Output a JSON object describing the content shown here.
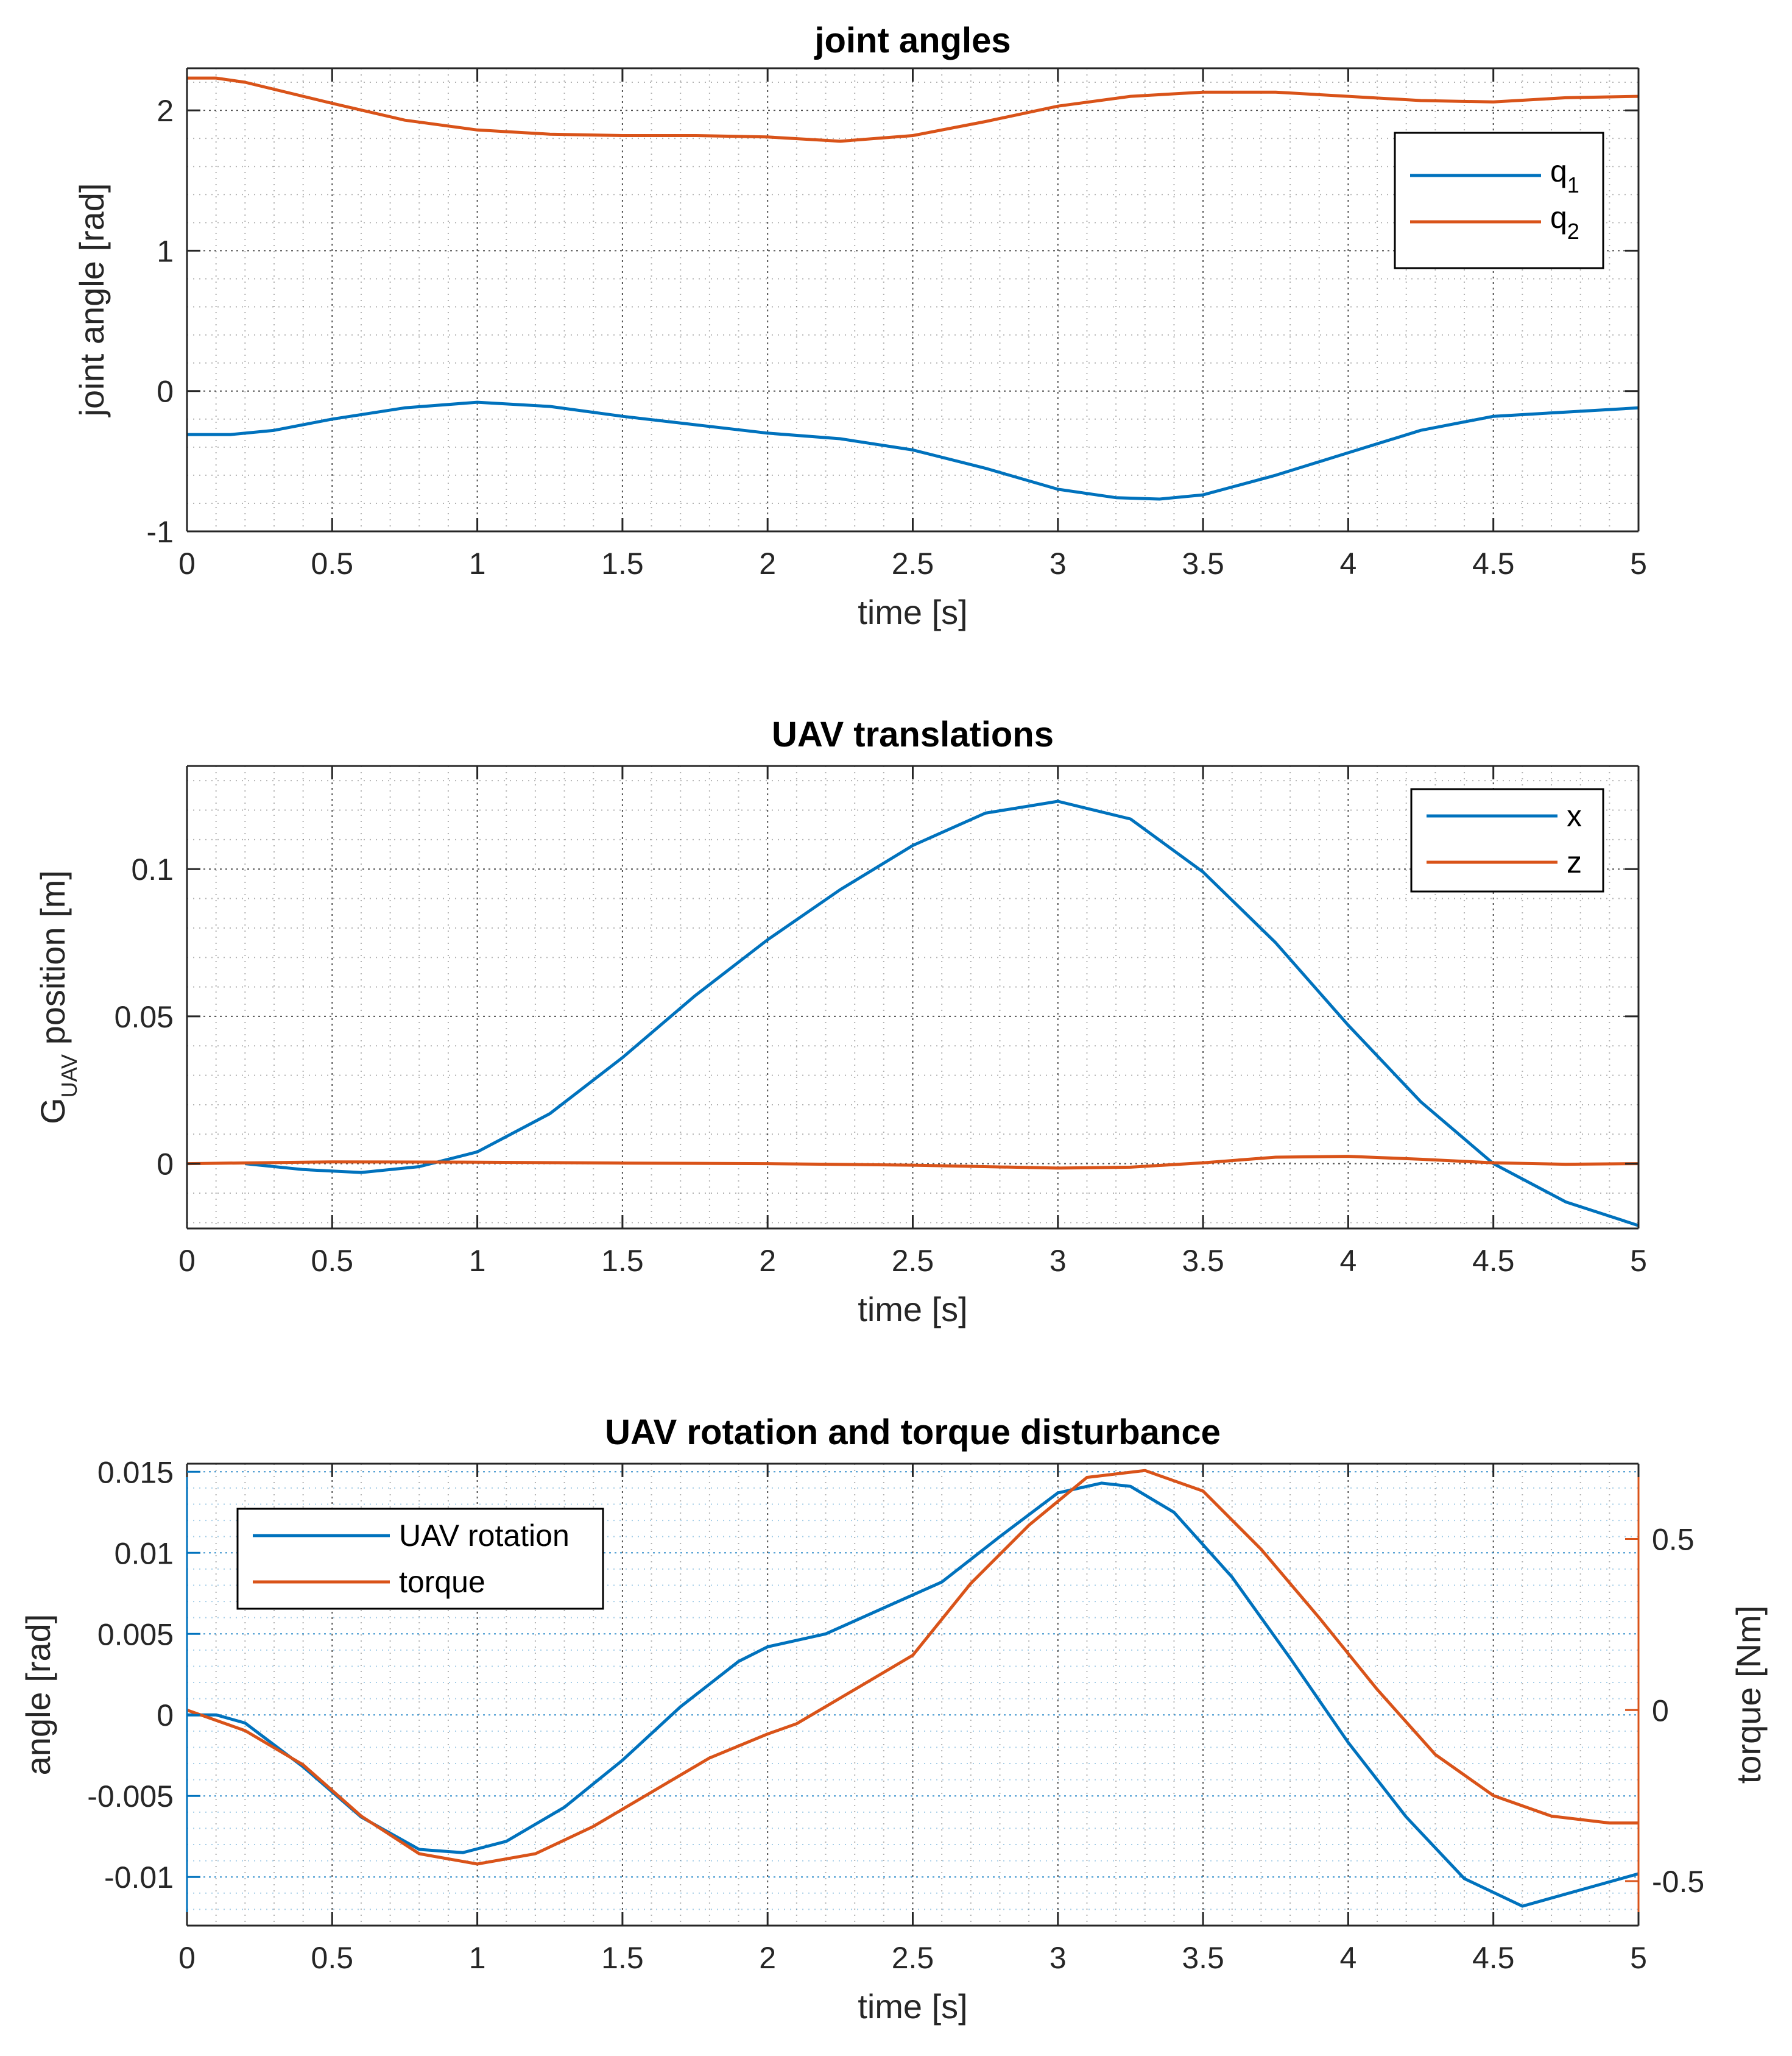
{
  "colors": {
    "blue": "#0072BD",
    "orange": "#D95319",
    "axis": "#262626",
    "grid": "#262626"
  },
  "chart_data": [
    {
      "type": "line",
      "title": "joint angles",
      "xlabel": "time [s]",
      "ylabel": "joint angle [rad]",
      "xlim": [
        0,
        5
      ],
      "ylim": [
        -1,
        2.3
      ],
      "xticks": [
        0,
        0.5,
        1,
        1.5,
        2,
        2.5,
        3,
        3.5,
        4,
        4.5,
        5
      ],
      "xtick_labels": [
        "0",
        "0.5",
        "1",
        "1.5",
        "2",
        "2.5",
        "3",
        "3.5",
        "4",
        "4.5",
        "5"
      ],
      "yticks": [
        -1,
        0,
        1,
        2
      ],
      "ytick_labels": [
        "-1",
        "0",
        "1",
        "2"
      ],
      "grid": "on (major + minor)",
      "legend_position": "upper-right",
      "series": [
        {
          "name": "q1",
          "label_base": "q",
          "label_sub": "1",
          "color": "#0072BD",
          "x": [
            0,
            0.15,
            0.3,
            0.5,
            0.75,
            1.0,
            1.25,
            1.5,
            1.75,
            2.0,
            2.25,
            2.5,
            2.75,
            3.0,
            3.2,
            3.35,
            3.5,
            3.75,
            4.0,
            4.25,
            4.5,
            4.75,
            5.0
          ],
          "y": [
            -0.31,
            -0.31,
            -0.28,
            -0.2,
            -0.12,
            -0.08,
            -0.11,
            -0.18,
            -0.24,
            -0.3,
            -0.34,
            -0.42,
            -0.55,
            -0.7,
            -0.76,
            -0.77,
            -0.74,
            -0.6,
            -0.44,
            -0.28,
            -0.18,
            -0.15,
            -0.12
          ]
        },
        {
          "name": "q2",
          "label_base": "q",
          "label_sub": "2",
          "color": "#D95319",
          "x": [
            0,
            0.1,
            0.2,
            0.5,
            0.75,
            1.0,
            1.25,
            1.5,
            1.75,
            2.0,
            2.25,
            2.5,
            2.75,
            3.0,
            3.25,
            3.5,
            3.75,
            4.0,
            4.25,
            4.5,
            4.75,
            5.0
          ],
          "y": [
            2.23,
            2.23,
            2.2,
            2.05,
            1.93,
            1.86,
            1.83,
            1.82,
            1.82,
            1.81,
            1.78,
            1.82,
            1.92,
            2.03,
            2.1,
            2.13,
            2.13,
            2.1,
            2.07,
            2.06,
            2.09,
            2.1
          ]
        }
      ]
    },
    {
      "type": "line",
      "title": "UAV translations",
      "xlabel": "time [s]",
      "ylabel_base": "G",
      "ylabel_sub": "UAV",
      "ylabel_rest": " position [m]",
      "xlim": [
        0,
        5
      ],
      "ylim": [
        -0.022,
        0.135
      ],
      "xticks": [
        0,
        0.5,
        1,
        1.5,
        2,
        2.5,
        3,
        3.5,
        4,
        4.5,
        5
      ],
      "xtick_labels": [
        "0",
        "0.5",
        "1",
        "1.5",
        "2",
        "2.5",
        "3",
        "3.5",
        "4",
        "4.5",
        "5"
      ],
      "yticks": [
        0,
        0.05,
        0.1
      ],
      "ytick_labels": [
        "0",
        "0.05",
        "0.1"
      ],
      "grid": "on (major + minor)",
      "legend_position": "upper-right",
      "series": [
        {
          "name": "x",
          "color": "#0072BD",
          "x": [
            0.2,
            0.4,
            0.6,
            0.8,
            1.0,
            1.25,
            1.5,
            1.75,
            2.0,
            2.25,
            2.5,
            2.75,
            3.0,
            3.25,
            3.5,
            3.75,
            4.0,
            4.25,
            4.5,
            4.75,
            5.0
          ],
          "y": [
            0.0,
            -0.002,
            -0.003,
            -0.001,
            0.004,
            0.017,
            0.036,
            0.057,
            0.076,
            0.093,
            0.108,
            0.119,
            0.123,
            0.117,
            0.099,
            0.075,
            0.047,
            0.021,
            0.0,
            -0.013,
            -0.021
          ]
        },
        {
          "name": "z",
          "color": "#D95319",
          "x": [
            0,
            0.5,
            1.0,
            1.5,
            2.0,
            2.5,
            3.0,
            3.25,
            3.5,
            3.75,
            4.0,
            4.25,
            4.5,
            4.75,
            5.0
          ],
          "y": [
            0.0,
            0.0006,
            0.0005,
            0.0002,
            0.0,
            -0.0005,
            -0.0015,
            -0.0012,
            0.0003,
            0.0022,
            0.0025,
            0.0015,
            0.0003,
            -0.0002,
            0.0
          ]
        }
      ]
    },
    {
      "type": "line",
      "title": "UAV rotation and torque disturbance",
      "xlabel": "time [s]",
      "ylabel": "angle [rad]",
      "y2label": "torque [Nm]",
      "xlim": [
        0,
        5
      ],
      "ylim": [
        -0.013,
        0.0155
      ],
      "y2lim": [
        -0.63,
        0.72
      ],
      "xticks": [
        0,
        0.5,
        1,
        1.5,
        2,
        2.5,
        3,
        3.5,
        4,
        4.5,
        5
      ],
      "xtick_labels": [
        "0",
        "0.5",
        "1",
        "1.5",
        "2",
        "2.5",
        "3",
        "3.5",
        "4",
        "4.5",
        "5"
      ],
      "yticks": [
        -0.01,
        -0.005,
        0,
        0.005,
        0.01,
        0.015
      ],
      "ytick_labels": [
        "-0.01",
        "-0.005",
        "0",
        "0.005",
        "0.01",
        "0.015"
      ],
      "y2ticks": [
        -0.5,
        0,
        0.5
      ],
      "y2tick_labels": [
        "-0.5",
        "0",
        "0.5"
      ],
      "grid": "on (major + minor)",
      "legend_position": "upper-left",
      "series": [
        {
          "name": "UAV rotation",
          "axis": "left",
          "color": "#0072BD",
          "x": [
            0,
            0.1,
            0.2,
            0.4,
            0.6,
            0.8,
            0.95,
            1.1,
            1.3,
            1.5,
            1.7,
            1.9,
            2.0,
            2.2,
            2.4,
            2.6,
            2.8,
            3.0,
            3.15,
            3.25,
            3.4,
            3.6,
            3.8,
            4.0,
            4.2,
            4.4,
            4.6,
            4.8,
            5.0
          ],
          "y": [
            0.0,
            0.0,
            -0.0005,
            -0.0032,
            -0.0063,
            -0.0083,
            -0.0085,
            -0.0078,
            -0.0057,
            -0.0028,
            0.0005,
            0.0033,
            0.0042,
            0.005,
            0.0066,
            0.0082,
            0.011,
            0.0137,
            0.0143,
            0.0141,
            0.0125,
            0.0085,
            0.0035,
            -0.0017,
            -0.0063,
            -0.0101,
            -0.0118,
            -0.0108,
            -0.0098
          ]
        },
        {
          "name": "torque",
          "axis": "right",
          "color": "#D95319",
          "x": [
            0,
            0.2,
            0.4,
            0.6,
            0.8,
            1.0,
            1.2,
            1.4,
            1.6,
            1.8,
            2.0,
            2.1,
            2.3,
            2.5,
            2.7,
            2.9,
            3.1,
            3.3,
            3.5,
            3.7,
            3.9,
            4.1,
            4.3,
            4.5,
            4.7,
            4.9,
            5.0
          ],
          "y": [
            0.0,
            -0.06,
            -0.16,
            -0.31,
            -0.42,
            -0.45,
            -0.42,
            -0.34,
            -0.24,
            -0.14,
            -0.07,
            -0.04,
            0.06,
            0.16,
            0.37,
            0.54,
            0.68,
            0.7,
            0.64,
            0.47,
            0.27,
            0.06,
            -0.13,
            -0.25,
            -0.31,
            -0.33,
            -0.33
          ]
        }
      ]
    }
  ]
}
